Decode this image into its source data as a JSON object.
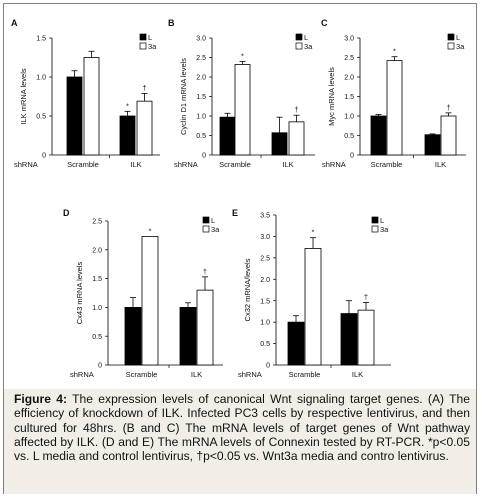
{
  "caption": {
    "label": "Figure 4:",
    "text": "The expression levels of canonical Wnt signaling target genes. (A) The efficiency of knockdown of ILK. Infected PC3 cells by respective lentivirus, and then cultured for 48hrs. (B and C) The mRNA levels of target genes of Wnt pathway affected by ILK. (D and E) The mRNA levels of Connexin tested by RT-PCR. *p<0.05 vs. L media and control lentivirus, †p<0.05 vs. Wnt3a media and contro lentivirus."
  },
  "colors": {
    "L": "#000000",
    "3a": "#ffffff",
    "frame": "#7f7f7f",
    "caption_bg": "#f1eee7"
  },
  "chart_data": [
    {
      "type": "bar",
      "panel": "A",
      "ylabel": "ILK mRNA levels",
      "ylim": [
        0,
        1.5
      ],
      "yticks": [
        "0",
        "0.5",
        "1.0",
        "1.5"
      ],
      "ytick_values": [
        0,
        0.5,
        1.0,
        1.5
      ],
      "row_label": "shRNA",
      "categories": [
        "Scramble",
        "ILK"
      ],
      "series": [
        {
          "name": "L",
          "values": [
            1.0,
            0.5
          ],
          "errors": [
            0.08,
            0.06
          ]
        },
        {
          "name": "3a",
          "values": [
            1.25,
            0.69
          ],
          "errors": [
            0.08,
            0.1
          ]
        }
      ],
      "annotations": [
        {
          "series": "L",
          "category": 1,
          "symbol": "*"
        },
        {
          "series": "3a",
          "category": 1,
          "symbol": "†"
        }
      ]
    },
    {
      "type": "bar",
      "panel": "B",
      "ylabel": "Cyclin D1 mRNA levels",
      "ylim": [
        0,
        3.0
      ],
      "yticks": [
        "0",
        "0.5",
        "1.0",
        "1.5",
        "2.0",
        "2.5",
        "3.0"
      ],
      "ytick_values": [
        0,
        0.5,
        1.0,
        1.5,
        2.0,
        2.5,
        3.0
      ],
      "row_label": "shRNA",
      "categories": [
        "Scramble",
        "ILK"
      ],
      "series": [
        {
          "name": "L",
          "values": [
            0.97,
            0.57
          ],
          "errors": [
            0.1,
            0.4
          ]
        },
        {
          "name": "3a",
          "values": [
            2.32,
            0.85
          ],
          "errors": [
            0.08,
            0.17
          ]
        }
      ],
      "annotations": [
        {
          "series": "3a",
          "category": 0,
          "symbol": "*"
        },
        {
          "series": "3a",
          "category": 1,
          "symbol": "†"
        }
      ]
    },
    {
      "type": "bar",
      "panel": "C",
      "ylabel": "Myc mRNA levels",
      "ylim": [
        0,
        3.0
      ],
      "yticks": [
        "0",
        "0.5",
        "1.0",
        "1.5",
        "2.0",
        "2.5",
        "3.0"
      ],
      "ytick_values": [
        0,
        0.5,
        1.0,
        1.5,
        2.0,
        2.5,
        3.0
      ],
      "row_label": "shRNA",
      "categories": [
        "Scramble",
        "ILK"
      ],
      "series": [
        {
          "name": "L",
          "values": [
            1.0,
            0.52
          ],
          "errors": [
            0.04,
            0.02
          ]
        },
        {
          "name": "3a",
          "values": [
            2.42,
            1.0
          ],
          "errors": [
            0.1,
            0.08
          ]
        }
      ],
      "annotations": [
        {
          "series": "3a",
          "category": 0,
          "symbol": "*"
        },
        {
          "series": "3a",
          "category": 1,
          "symbol": "†"
        }
      ]
    },
    {
      "type": "bar",
      "panel": "D",
      "ylabel": "Cx43 mRNA levels",
      "ylim": [
        0,
        2.5
      ],
      "yticks": [
        "0",
        "0.5",
        "1.0",
        "1.5",
        "2.0",
        "2.5"
      ],
      "ytick_values": [
        0,
        0.5,
        1.0,
        1.5,
        2.0,
        2.5
      ],
      "row_label": "shRNA",
      "categories": [
        "Scramble",
        "ILK"
      ],
      "series": [
        {
          "name": "L",
          "values": [
            1.0,
            1.0
          ],
          "errors": [
            0.17,
            0.08
          ]
        },
        {
          "name": "3a",
          "values": [
            2.23,
            1.3
          ],
          "errors": [
            0.0,
            0.23
          ]
        }
      ],
      "annotations": [
        {
          "series": "3a",
          "category": 0,
          "symbol": "*"
        },
        {
          "series": "3a",
          "category": 1,
          "symbol": "†"
        }
      ]
    },
    {
      "type": "bar",
      "panel": "E",
      "ylabel": "Cx32 mRNA/levels",
      "ylim": [
        0,
        3.5
      ],
      "yticks": [
        "0",
        "0.5",
        "1.0",
        "1.5",
        "2.0",
        "2.5",
        "3.0",
        "3.5"
      ],
      "ytick_values": [
        0,
        0.5,
        1.0,
        1.5,
        2.0,
        2.5,
        3.0,
        3.5
      ],
      "row_label": "shRNA",
      "categories": [
        "Scramble",
        "ILK"
      ],
      "series": [
        {
          "name": "L",
          "values": [
            1.0,
            1.2
          ],
          "errors": [
            0.15,
            0.3
          ]
        },
        {
          "name": "3a",
          "values": [
            2.72,
            1.28
          ],
          "errors": [
            0.25,
            0.18
          ]
        }
      ],
      "annotations": [
        {
          "series": "3a",
          "category": 0,
          "symbol": "*"
        },
        {
          "series": "3a",
          "category": 1,
          "symbol": "†"
        }
      ]
    }
  ]
}
